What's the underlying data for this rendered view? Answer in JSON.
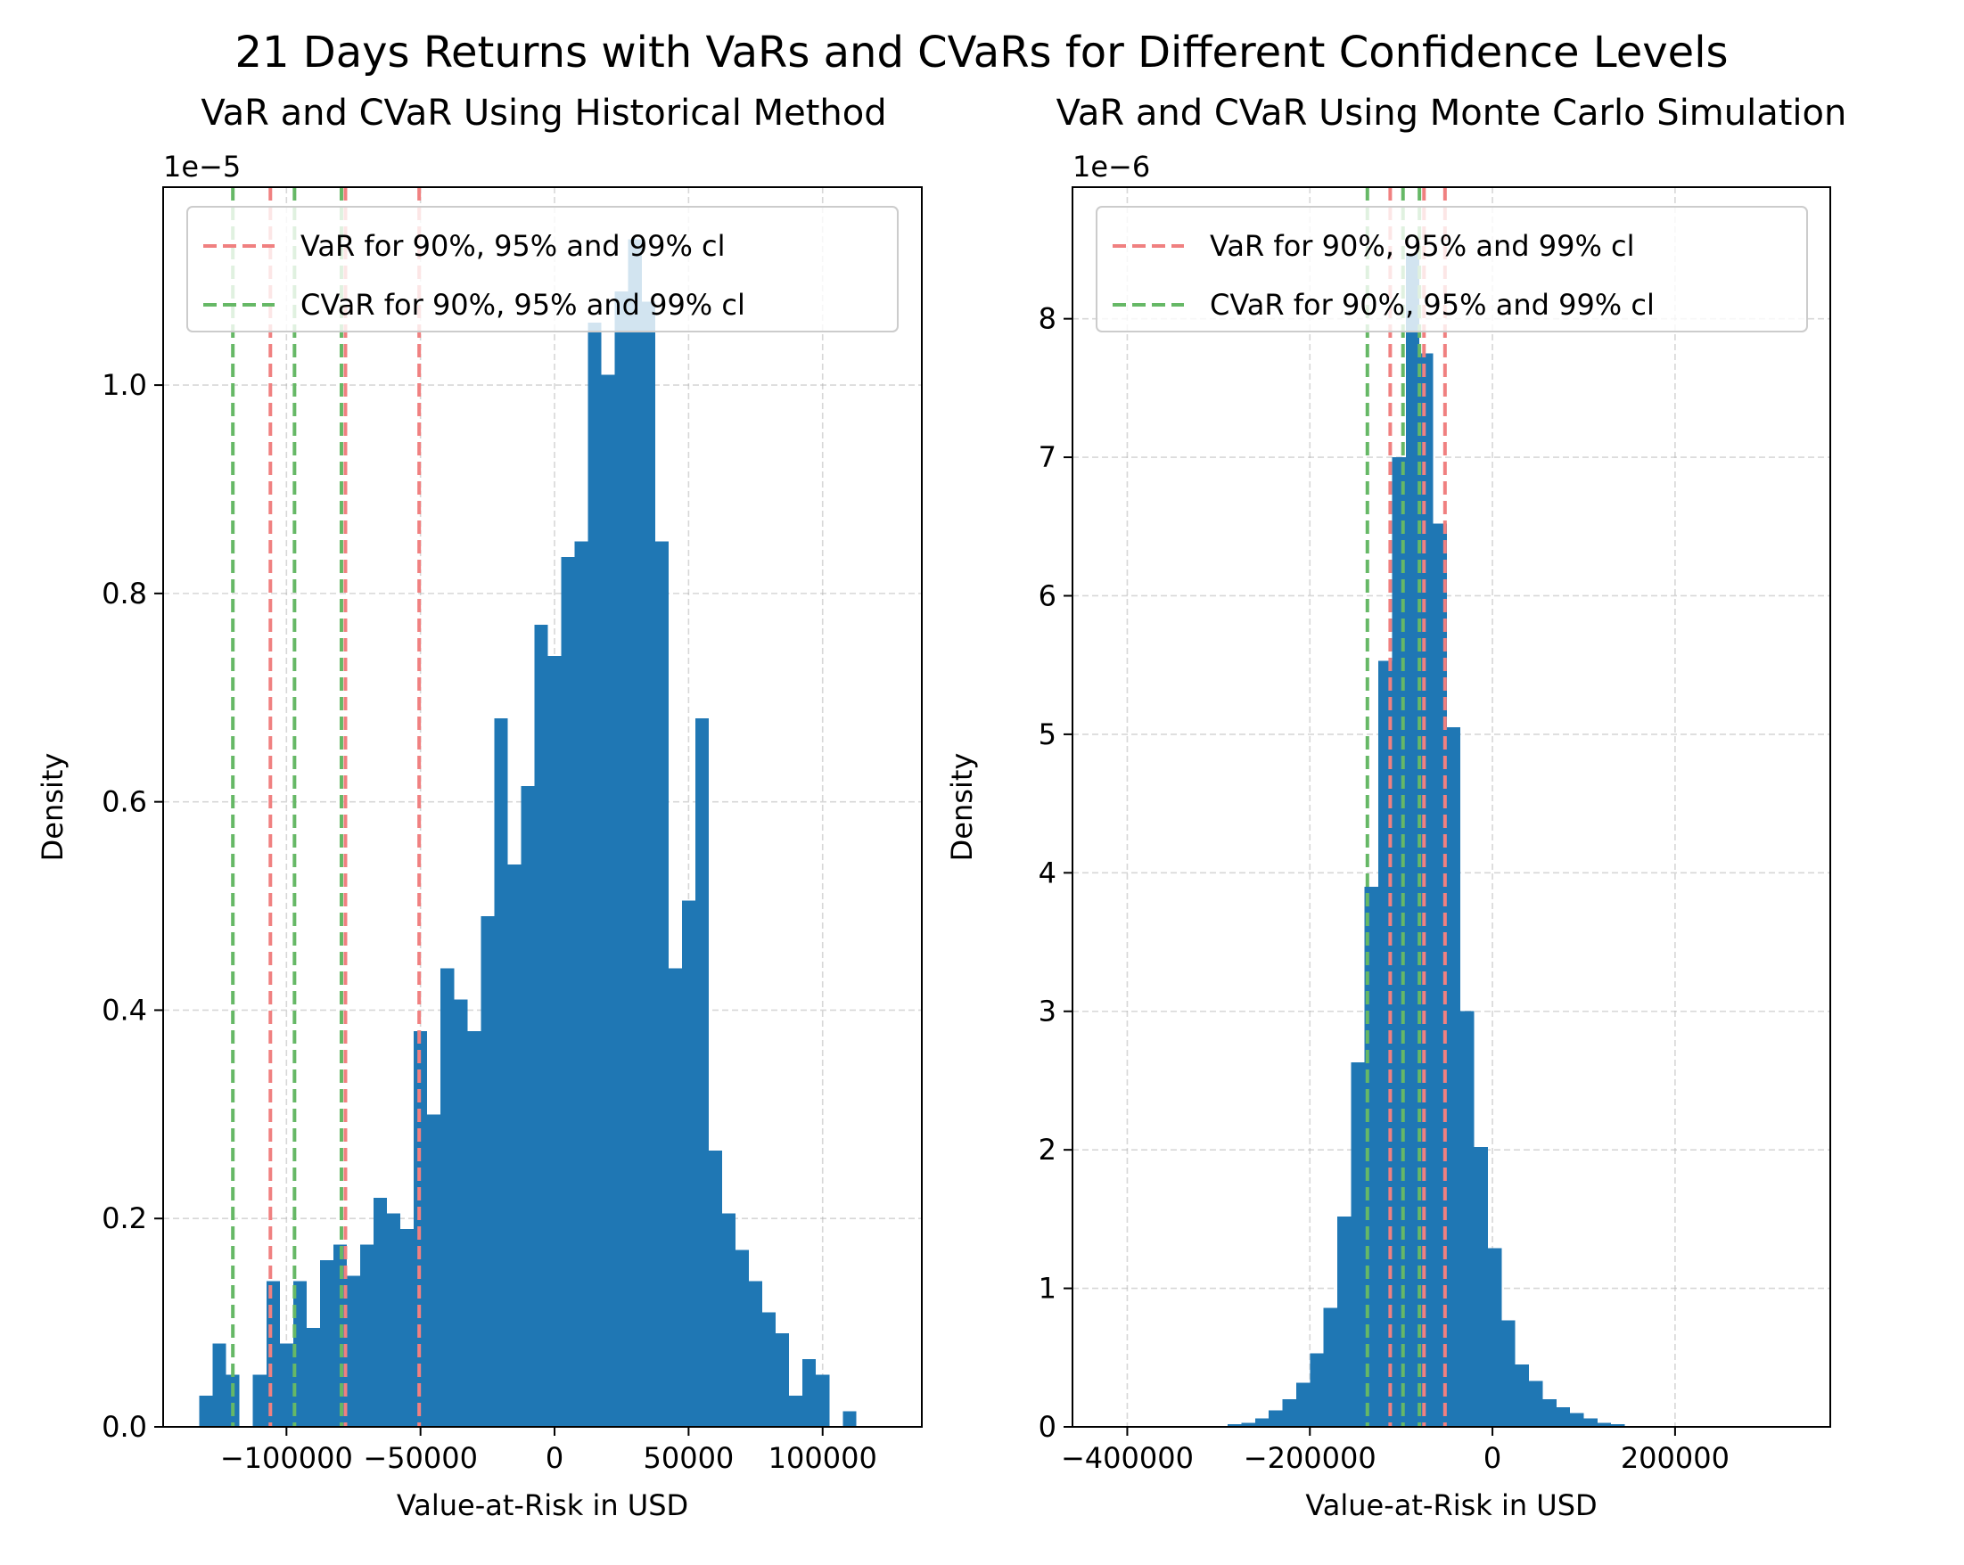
{
  "title": "21 Days Returns with VaRs and CVaRs for Different Confidence Levels",
  "colors": {
    "bar": "#1f77b4",
    "var": "#f08080",
    "cvar": "#66b866"
  },
  "chart_data": [
    {
      "type": "bar",
      "title": "VaR and CVaR Using Historical Method",
      "xlabel": "Value-at-Risk in USD",
      "ylabel": "Density",
      "offset_text": "1e−5",
      "grid": true,
      "legend_position": "upper-left",
      "xlim": [
        -146000,
        137000
      ],
      "ylim": [
        0,
        1.19
      ],
      "xticks": [
        -100000,
        -50000,
        0,
        50000,
        100000
      ],
      "xtick_labels": [
        "−100000",
        "−50000",
        "0",
        "50000",
        "100000"
      ],
      "yticks": [
        0,
        0.2,
        0.4,
        0.6,
        0.8,
        1.0
      ],
      "ytick_labels": [
        "0.0",
        "0.2",
        "0.4",
        "0.6",
        "0.8",
        "1.0"
      ],
      "bin_start": -132500,
      "bin_width": 5000,
      "values": [
        0.03,
        0.08,
        0.05,
        0.0,
        0.05,
        0.14,
        0.08,
        0.14,
        0.095,
        0.16,
        0.175,
        0.145,
        0.175,
        0.22,
        0.205,
        0.19,
        0.38,
        0.3,
        0.44,
        0.41,
        0.38,
        0.49,
        0.68,
        0.54,
        0.615,
        0.77,
        0.74,
        0.835,
        0.85,
        1.06,
        1.01,
        1.09,
        1.14,
        1.08,
        0.85,
        0.44,
        0.505,
        0.68,
        0.265,
        0.205,
        0.17,
        0.14,
        0.11,
        0.09,
        0.03,
        0.065,
        0.05,
        0.0,
        0.015
      ],
      "var_lines": [
        -106000,
        -78000,
        -50500
      ],
      "cvar_lines": [
        -120000,
        -97000,
        -79500
      ],
      "legend": [
        "VaR for 90%, 95% and 99% cl",
        "CVaR for 90%, 95% and 99% cl"
      ]
    },
    {
      "type": "bar",
      "title": "VaR and CVaR Using Monte Carlo Simulation",
      "xlabel": "Value-at-Risk in USD",
      "ylabel": "Density",
      "offset_text": "1e−6",
      "grid": true,
      "legend_position": "upper-left",
      "xlim": [
        -460000,
        370000
      ],
      "ylim": [
        0,
        8.95
      ],
      "xticks": [
        -400000,
        -200000,
        0,
        200000
      ],
      "xtick_labels": [
        "−400000",
        "−200000",
        "0",
        "200000"
      ],
      "yticks": [
        0,
        1,
        2,
        3,
        4,
        5,
        6,
        7,
        8
      ],
      "ytick_labels": [
        "0",
        "1",
        "2",
        "3",
        "4",
        "5",
        "6",
        "7",
        "8"
      ],
      "bin_start": -440000,
      "bin_width": 15000,
      "values": [
        0.005,
        0.005,
        0.005,
        0.005,
        0.005,
        0.005,
        0.005,
        0.005,
        0.005,
        0.005,
        0.02,
        0.03,
        0.06,
        0.12,
        0.2,
        0.32,
        0.53,
        0.86,
        1.52,
        2.63,
        3.9,
        5.53,
        7.0,
        8.47,
        7.75,
        6.52,
        5.05,
        3.0,
        2.02,
        1.29,
        0.77,
        0.45,
        0.33,
        0.2,
        0.14,
        0.1,
        0.06,
        0.03,
        0.02,
        0.005
      ],
      "var_lines": [
        -112000,
        -75000,
        -52000
      ],
      "cvar_lines": [
        -137000,
        -98000,
        -80000
      ],
      "legend": [
        "VaR for 90%, 95% and 99% cl",
        "CVaR for 90%, 95% and 99% cl"
      ]
    }
  ]
}
